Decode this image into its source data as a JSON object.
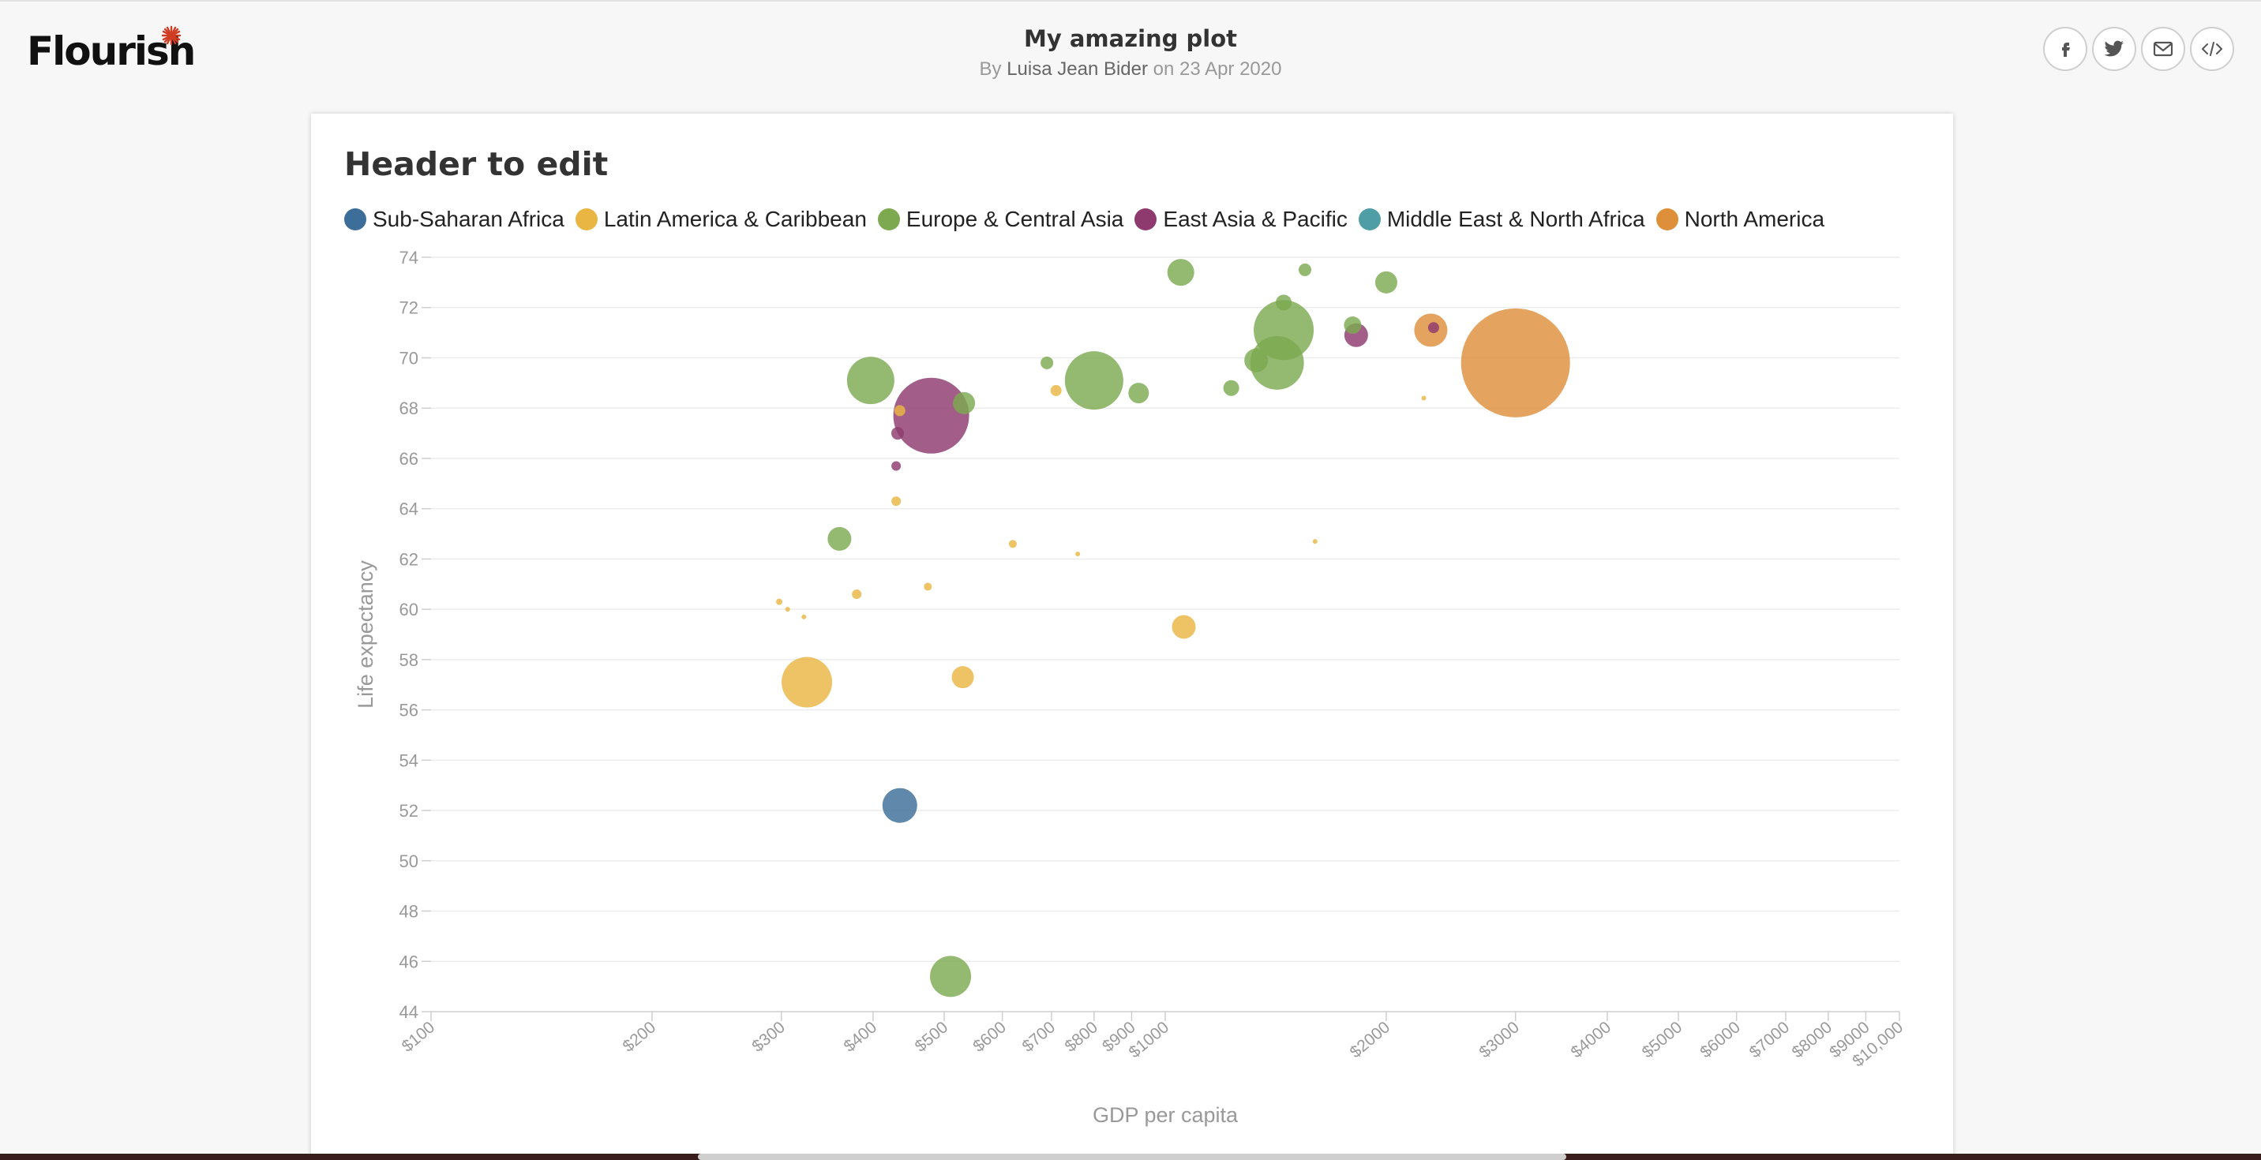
{
  "page": {
    "logo_text": "Flourish",
    "title": "My amazing plot",
    "byline_prefix": "By",
    "author": "Luisa Jean Bider",
    "byline_on": "on",
    "date": "23 Apr 2020",
    "share_icons": [
      "facebook-icon",
      "twitter-icon",
      "email-icon",
      "embed-code-icon"
    ]
  },
  "chart_data": {
    "type": "scatter",
    "title": "Header to edit",
    "xlabel": "GDP per capita",
    "ylabel": "Life expectancy",
    "x_scale": "log",
    "xlim": [
      100,
      10000
    ],
    "ylim": [
      44,
      74
    ],
    "x_ticks": [
      100,
      200,
      300,
      400,
      500,
      600,
      700,
      800,
      900,
      1000,
      2000,
      3000,
      4000,
      5000,
      6000,
      7000,
      8000,
      9000,
      10000
    ],
    "x_tick_labels": [
      "$100",
      "$200",
      "$300",
      "$400",
      "$500",
      "$600",
      "$700",
      "$800",
      "$900",
      "$1000",
      "$2000",
      "$3000",
      "$4000",
      "$5000",
      "$6000",
      "$7000",
      "$8000",
      "$9000",
      "$10,000"
    ],
    "y_ticks": [
      44,
      46,
      48,
      50,
      52,
      54,
      56,
      58,
      60,
      62,
      64,
      66,
      68,
      70,
      72,
      74
    ],
    "grid": true,
    "legend_position": "top-left",
    "series": [
      {
        "name": "Sub-Saharan Africa",
        "color": "#3d6e99",
        "points": [
          {
            "x": 435,
            "y": 52.2,
            "r": 22
          }
        ]
      },
      {
        "name": "Latin America & Caribbean",
        "color": "#eab643",
        "points": [
          {
            "x": 435,
            "y": 67.9,
            "r": 7
          },
          {
            "x": 325,
            "y": 57.1,
            "r": 32
          },
          {
            "x": 530,
            "y": 57.3,
            "r": 14
          },
          {
            "x": 1060,
            "y": 59.3,
            "r": 15
          },
          {
            "x": 710,
            "y": 68.7,
            "r": 7
          },
          {
            "x": 430,
            "y": 64.3,
            "r": 6
          },
          {
            "x": 380,
            "y": 60.6,
            "r": 6
          },
          {
            "x": 475,
            "y": 60.9,
            "r": 5
          },
          {
            "x": 620,
            "y": 62.6,
            "r": 5
          },
          {
            "x": 298,
            "y": 60.3,
            "r": 4
          },
          {
            "x": 306,
            "y": 60.0,
            "r": 3
          },
          {
            "x": 322,
            "y": 59.7,
            "r": 3
          },
          {
            "x": 760,
            "y": 62.2,
            "r": 3
          },
          {
            "x": 1600,
            "y": 62.7,
            "r": 3
          },
          {
            "x": 2250,
            "y": 68.4,
            "r": 3
          }
        ]
      },
      {
        "name": "Europe & Central Asia",
        "color": "#7daa50",
        "points": [
          {
            "x": 397,
            "y": 69.1,
            "r": 30
          },
          {
            "x": 532,
            "y": 68.2,
            "r": 14
          },
          {
            "x": 690,
            "y": 69.8,
            "r": 8
          },
          {
            "x": 800,
            "y": 69.1,
            "r": 37
          },
          {
            "x": 920,
            "y": 68.6,
            "r": 13
          },
          {
            "x": 1050,
            "y": 73.4,
            "r": 17
          },
          {
            "x": 1230,
            "y": 68.8,
            "r": 10
          },
          {
            "x": 1330,
            "y": 69.9,
            "r": 15
          },
          {
            "x": 1420,
            "y": 69.8,
            "r": 34
          },
          {
            "x": 1450,
            "y": 71.1,
            "r": 38
          },
          {
            "x": 1450,
            "y": 72.2,
            "r": 10
          },
          {
            "x": 1550,
            "y": 73.5,
            "r": 8
          },
          {
            "x": 1800,
            "y": 71.3,
            "r": 11
          },
          {
            "x": 2000,
            "y": 73.0,
            "r": 14
          },
          {
            "x": 360,
            "y": 62.8,
            "r": 15
          },
          {
            "x": 510,
            "y": 45.4,
            "r": 26
          }
        ]
      },
      {
        "name": "East Asia & Pacific",
        "color": "#8e3a6e",
        "points": [
          {
            "x": 480,
            "y": 67.7,
            "r": 48
          },
          {
            "x": 432,
            "y": 67.0,
            "r": 8
          },
          {
            "x": 430,
            "y": 65.7,
            "r": 6
          },
          {
            "x": 1820,
            "y": 70.9,
            "r": 15
          },
          {
            "x": 2320,
            "y": 71.2,
            "r": 7
          }
        ]
      },
      {
        "name": "Middle East & North Africa",
        "color": "#4f9ea6",
        "points": []
      },
      {
        "name": "North America",
        "color": "#de8f3a",
        "points": [
          {
            "x": 2300,
            "y": 71.1,
            "r": 21
          },
          {
            "x": 3000,
            "y": 69.8,
            "r": 69
          }
        ]
      }
    ]
  }
}
